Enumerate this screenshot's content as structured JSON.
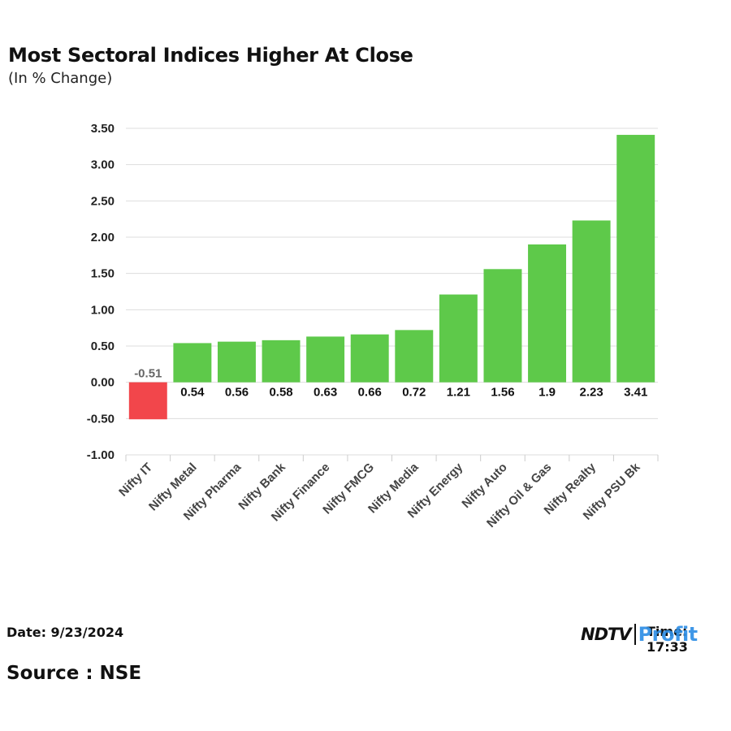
{
  "header": {
    "title": "Most Sectoral Indices Higher At Close",
    "subtitle": "(In % Change)"
  },
  "footer": {
    "date": "Date: 9/23/2024",
    "time": "Time: 17:33",
    "source": "Source : NSE",
    "logo_ndtv": "NDTV",
    "logo_profit": "Profit"
  },
  "colors": {
    "positive": "#5ec94a",
    "negative": "#f2464b",
    "grid": "#dddddd",
    "profit": "#2f8fe6"
  },
  "chart_data": {
    "type": "bar",
    "title": "Most Sectoral Indices Higher At Close",
    "subtitle": "(In % Change)",
    "categories": [
      "Nifty IT",
      "Nifty Metal",
      "Nifty Pharma",
      "Nifty Bank",
      "Nifty Finance",
      "Nifty FMCG",
      "Nifty Media",
      "Nifty Energy",
      "Nifty Auto",
      "Nifty Oil & Gas",
      "Nifty Realty",
      "Nifty PSU Bk"
    ],
    "values": [
      -0.51,
      0.54,
      0.56,
      0.58,
      0.63,
      0.66,
      0.72,
      1.21,
      1.56,
      1.9,
      2.23,
      3.41
    ],
    "data_labels": [
      "-0.51",
      "0.54",
      "0.56",
      "0.58",
      "0.63",
      "0.66",
      "0.72",
      "1.21",
      "1.56",
      "1.9",
      "2.23",
      "3.41"
    ],
    "yticks": [
      -1.0,
      -0.5,
      0.0,
      0.5,
      1.0,
      1.5,
      2.0,
      2.5,
      3.0,
      3.5
    ],
    "ytick_labels": [
      "-1.00",
      "-0.50",
      "0.00",
      "0.50",
      "1.00",
      "1.50",
      "2.00",
      "2.50",
      "3.00",
      "3.50"
    ],
    "ylim": [
      -1.0,
      3.5
    ],
    "xlabel": "",
    "ylabel": "",
    "grid": true,
    "legend": "none"
  }
}
